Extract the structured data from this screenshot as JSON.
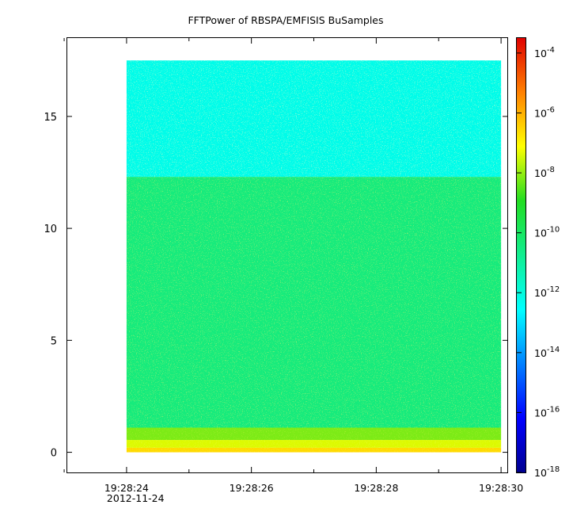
{
  "chart_data": {
    "type": "heatmap",
    "title": "FFTPower of RBSPA/EMFISIS  BuSamples",
    "xlabel": "",
    "ylabel": "",
    "x_ticks": [
      {
        "value": 24,
        "label": "19:28:24",
        "sublabel": "2012-11-24"
      },
      {
        "value": 26,
        "label": "19:28:26"
      },
      {
        "value": 28,
        "label": "19:28:28"
      },
      {
        "value": 30,
        "label": "19:28:30"
      }
    ],
    "x_minor_ticks": [
      23,
      25,
      27,
      29
    ],
    "xlim": [
      23.05,
      30.1
    ],
    "y_ticks": [
      0,
      5,
      10,
      15
    ],
    "ylim": [
      -0.9,
      18.5
    ],
    "data_x_range": [
      24,
      30
    ],
    "data_y_range": [
      0,
      17.5
    ],
    "bands": [
      {
        "y_range": [
          12.3,
          17.5
        ],
        "log10_power": -12.2
      },
      {
        "y_range": [
          1.1,
          12.3
        ],
        "log10_power": -10.4
      },
      {
        "y_range": [
          0.55,
          1.1
        ],
        "log10_power": -8.2
      },
      {
        "y_range": [
          0.2,
          0.55
        ],
        "log10_power": -7.4
      },
      {
        "y_range": [
          0,
          0.2
        ],
        "log10_power": -6.6
      }
    ],
    "colorbar": {
      "scale": "log",
      "range_exp": [
        -18,
        -3.5
      ],
      "tick_exps": [
        -4,
        -6,
        -8,
        -10,
        -12,
        -14,
        -16,
        -18
      ],
      "tick_base": "10"
    },
    "grid": false,
    "legend": "none"
  }
}
